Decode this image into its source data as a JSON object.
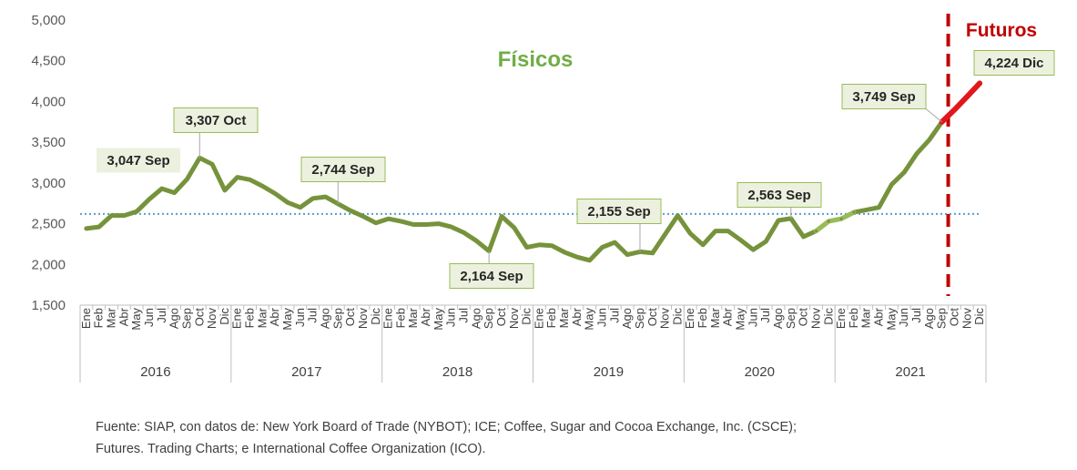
{
  "chart_data": {
    "type": "line",
    "title": "Físicos",
    "futures_label": "Futuros",
    "ylim": [
      1500,
      5000
    ],
    "yticks": [
      "1,500",
      "2,000",
      "2,500",
      "3,000",
      "3,500",
      "4,000",
      "4,500",
      "5,000"
    ],
    "month_labels": [
      "Ene",
      "Feb",
      "Mar",
      "Abr",
      "May",
      "Jun",
      "Jul",
      "Ago",
      "Sep",
      "Oct",
      "Nov",
      "Dic"
    ],
    "years": [
      "2016",
      "2017",
      "2018",
      "2019",
      "2020",
      "2021"
    ],
    "reference_line": 2620,
    "series": [
      {
        "values": [
          2440,
          2460,
          2600,
          2600,
          2650,
          2800,
          2930,
          2880,
          3047,
          3307,
          3230,
          2910,
          3070,
          3040,
          2960,
          2870,
          2760,
          2700,
          2810,
          2830,
          2744,
          2660,
          2590,
          2510,
          2560,
          2530,
          2490,
          2490,
          2500,
          2460,
          2390,
          2290,
          2164,
          2590,
          2450,
          2210,
          2240,
          2230,
          2150,
          2090,
          2050,
          2210,
          2270,
          2120,
          2155,
          2140,
          2370,
          2600,
          2380,
          2240,
          2410,
          2410,
          2300,
          2180,
          2280,
          2540,
          2563,
          2340,
          2410,
          2530,
          2560,
          2640,
          2670,
          2700,
          2980,
          3130,
          3360,
          3530,
          3749
        ],
        "color": "#76933c"
      },
      {
        "name": "Futuros",
        "values": [
          3749,
          3900,
          4060,
          4224
        ],
        "start_index": 68,
        "color": "#e0181d"
      }
    ],
    "annotations": [
      {
        "text": "3,047 Sep",
        "index": 8
      },
      {
        "text": "3,307 Oct",
        "index": 9
      },
      {
        "text": "2,744 Sep",
        "index": 20
      },
      {
        "text": "2,164 Sep",
        "index": 32
      },
      {
        "text": "2,155 Sep",
        "index": 44
      },
      {
        "text": "2,563 Sep",
        "index": 56
      },
      {
        "text": "3,749 Sep",
        "index": 68
      },
      {
        "text": "4,224 Dic",
        "index": 71
      }
    ]
  },
  "source": {
    "line1": "Fuente: SIAP, con datos de: New York Board of Trade (NYBOT); ICE; Coffee, Sugar and Cocoa Exchange, Inc. (CSCE);",
    "line2": "Futures. Trading Charts; e International Coffee Organization (ICO)."
  },
  "colors": {
    "physical_line": "#76933c",
    "futures_line": "#e0181d",
    "reference_line": "#5b9bd5",
    "title_green": "#70ad47",
    "futuros_red": "#c00000",
    "callout_bg": "#ebf1de",
    "callout_border": "#9bbb59"
  }
}
